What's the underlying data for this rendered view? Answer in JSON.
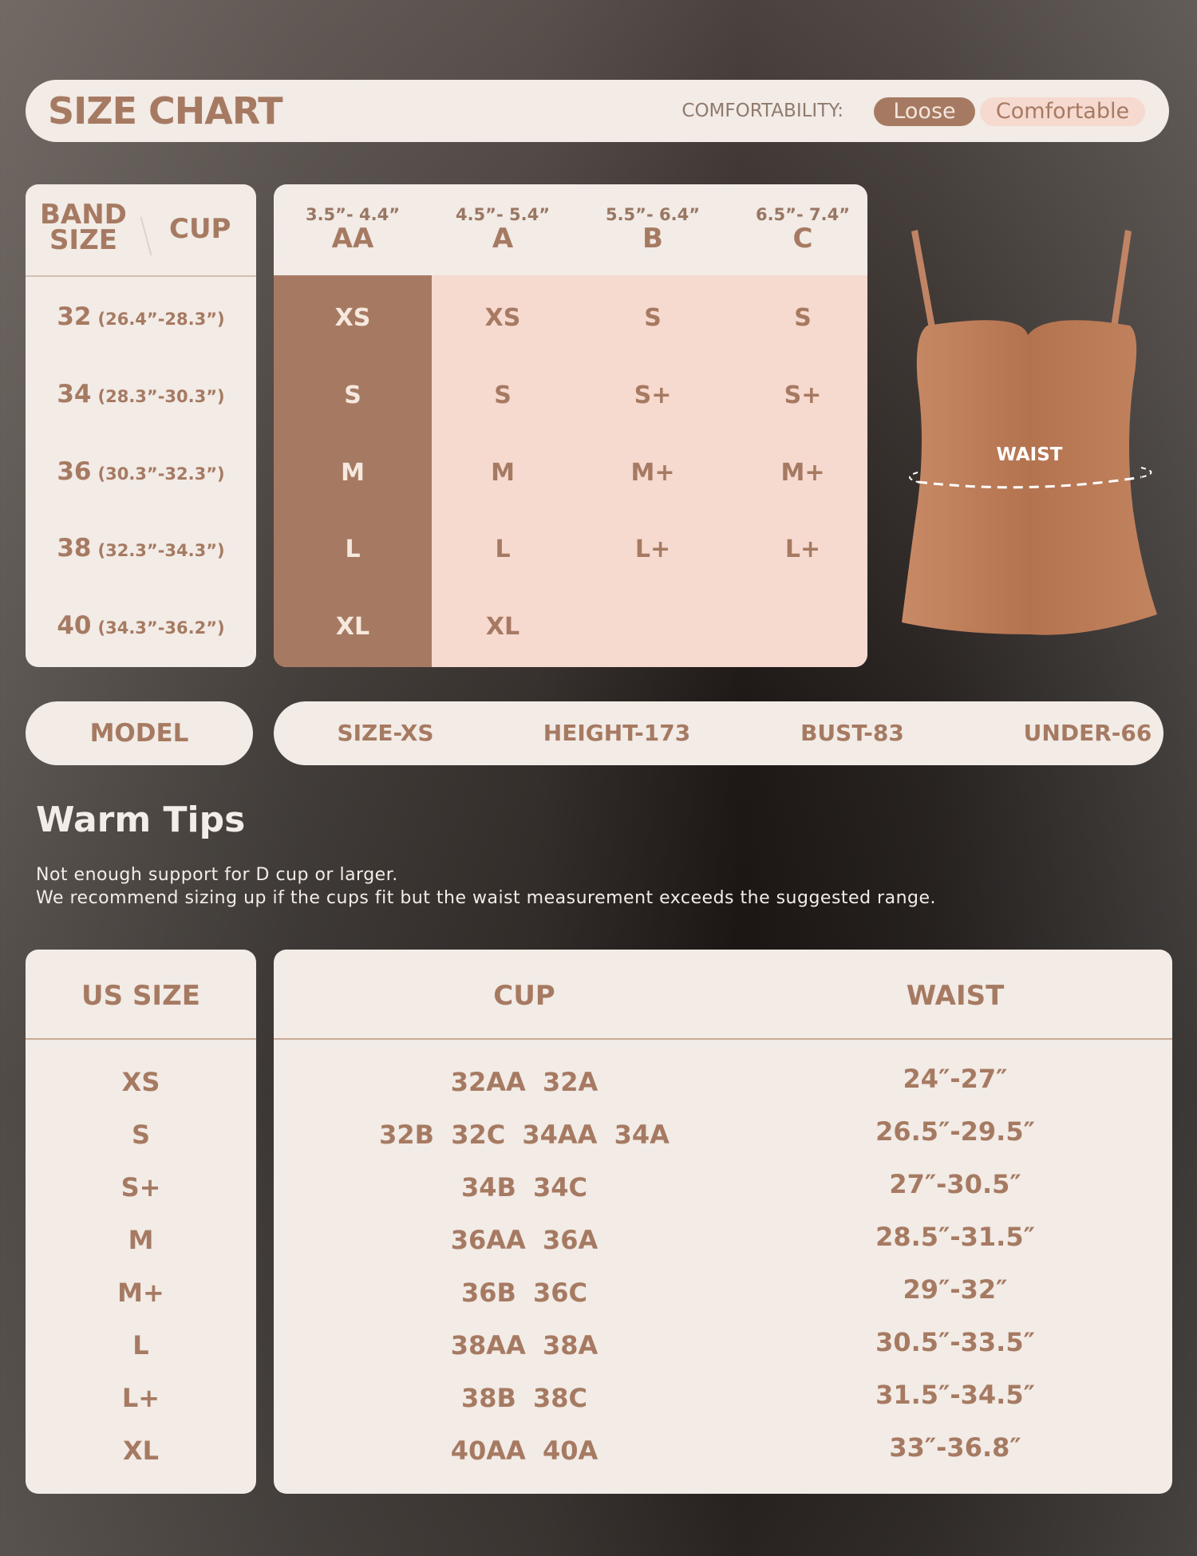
{
  "colors": {
    "accent": "#a67a62",
    "panel": "#f2ebe6",
    "highlight": "#f6d9cf"
  },
  "header": {
    "title": "SIZE CHART",
    "comfort_label": "COMFORTABILITY:",
    "loose": "Loose",
    "comfortable": "Comfortable"
  },
  "band": {
    "band_label_1": "BAND",
    "band_label_2": "SIZE",
    "cup_label": "CUP",
    "rows": [
      {
        "size": "32",
        "range": "(26.4”-28.3”)"
      },
      {
        "size": "34",
        "range": "(28.3”-30.3”)"
      },
      {
        "size": "36",
        "range": "(30.3”-32.3”)"
      },
      {
        "size": "38",
        "range": "(32.3”-34.3”)"
      },
      {
        "size": "40",
        "range": "(34.3”-36.2”)"
      }
    ]
  },
  "cups": {
    "columns": [
      {
        "range": "3.5”- 4.4”",
        "letter": "AA"
      },
      {
        "range": "4.5”- 5.4”",
        "letter": "A"
      },
      {
        "range": "5.5”- 6.4”",
        "letter": "B"
      },
      {
        "range": "6.5”- 7.4”",
        "letter": "C"
      }
    ],
    "grid": [
      [
        "XS",
        "XS",
        "S",
        "S"
      ],
      [
        "S",
        "S",
        "S+",
        "S+"
      ],
      [
        "M",
        "M",
        "M+",
        "M+"
      ],
      [
        "L",
        "L",
        "L+",
        "L+"
      ],
      [
        "XL",
        "XL",
        "",
        ""
      ]
    ]
  },
  "product": {
    "waist_label": "WAIST"
  },
  "model": {
    "label": "MODEL",
    "size": "SIZE-XS",
    "height": "HEIGHT-173",
    "bust": "BUST-83",
    "under": "UNDER-66"
  },
  "tips": {
    "title": "Warm Tips",
    "line1": "Not enough support for D cup or larger.",
    "line2": "We recommend sizing up if the cups fit but the waist measurement exceeds the suggested range."
  },
  "us_table": {
    "headers": {
      "size": "US SIZE",
      "cup": "CUP",
      "waist": "WAIST"
    },
    "rows": [
      {
        "size": "XS",
        "cup": "32AA 32A",
        "waist": "24″-27″"
      },
      {
        "size": "S",
        "cup": "32B 32C 34AA 34A",
        "waist": "26.5″-29.5″"
      },
      {
        "size": "S+",
        "cup": "34B 34C",
        "waist": "27″-30.5″"
      },
      {
        "size": "M",
        "cup": "36AA 36A",
        "waist": "28.5″-31.5″"
      },
      {
        "size": "M+",
        "cup": "36B 36C",
        "waist": "29″-32″"
      },
      {
        "size": "L",
        "cup": "38AA 38A",
        "waist": "30.5″-33.5″"
      },
      {
        "size": "L+",
        "cup": "38B 38C",
        "waist": "31.5″-34.5″"
      },
      {
        "size": "XL",
        "cup": "40AA 40A",
        "waist": "33″-36.8″"
      }
    ]
  }
}
